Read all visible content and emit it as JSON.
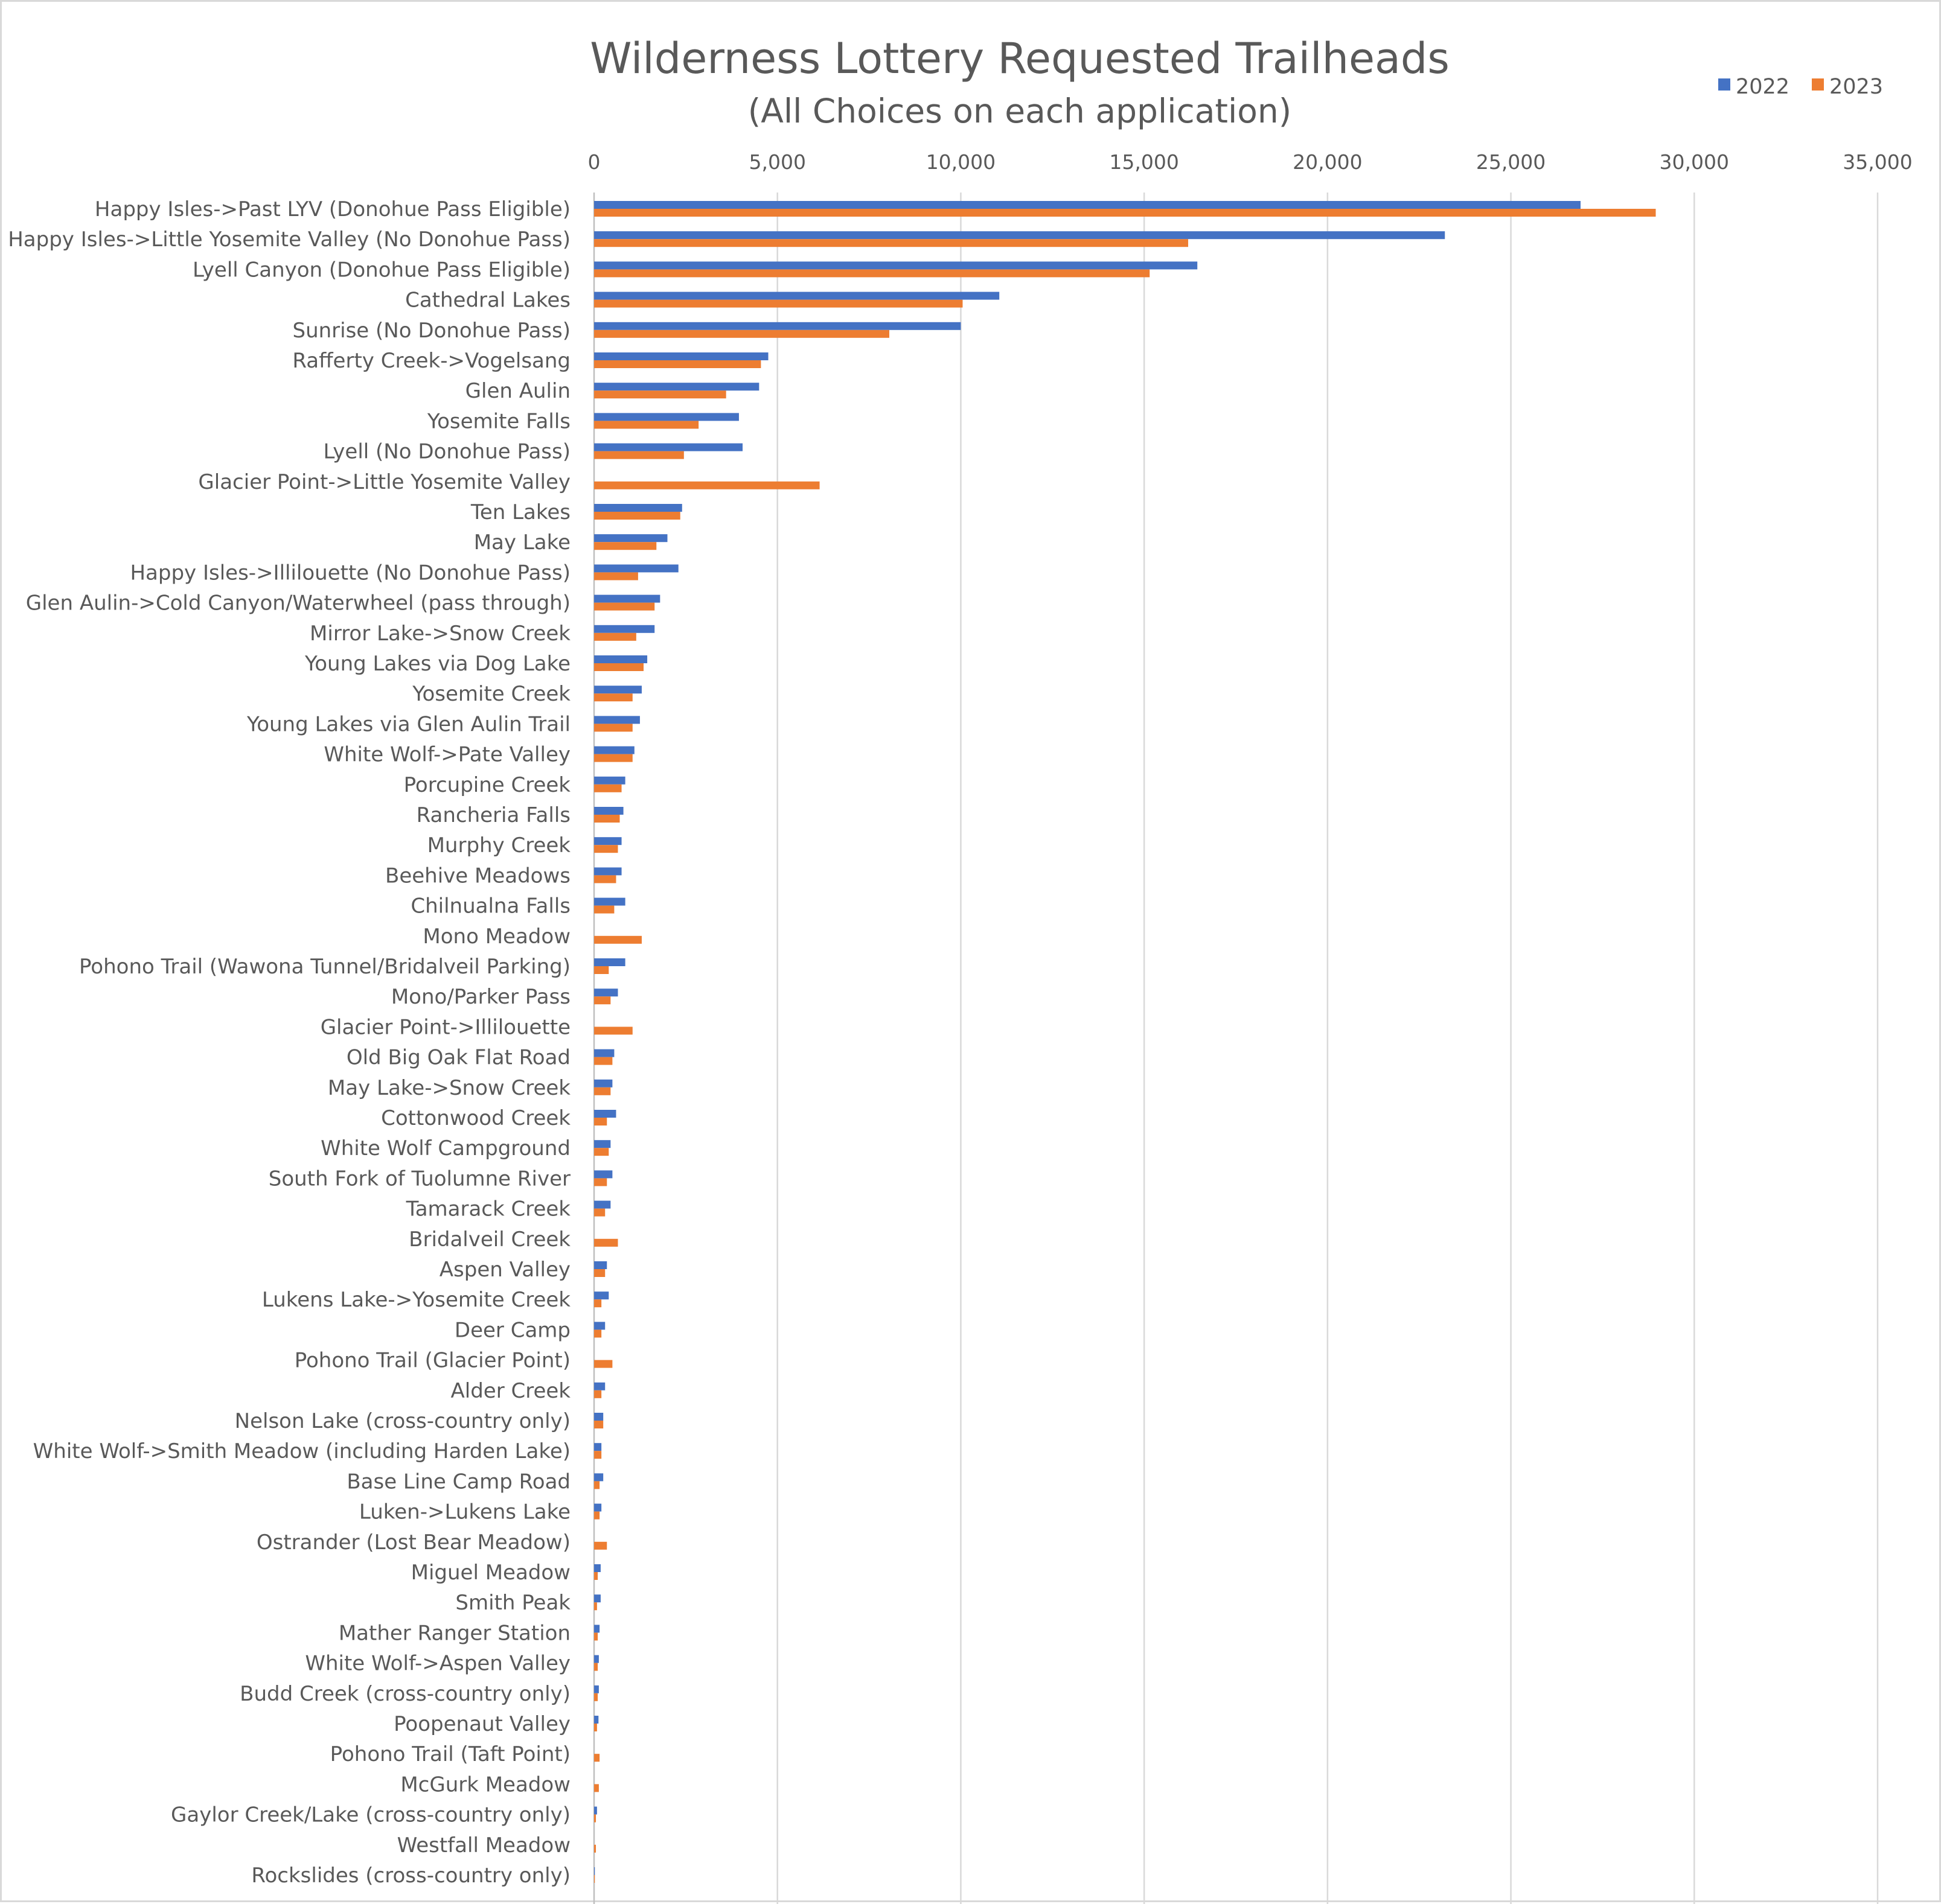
{
  "chart_data": {
    "type": "bar",
    "orientation": "horizontal",
    "title": "Wilderness Lottery Requested Trailheads",
    "subtitle": "(All Choices on each application)",
    "xlim": [
      0,
      35000
    ],
    "x_ticks": [
      0,
      5000,
      10000,
      15000,
      20000,
      25000,
      30000,
      35000
    ],
    "x_tick_labels": [
      "0",
      "5,000",
      "10,000",
      "15,000",
      "20,000",
      "25,000",
      "30,000",
      "35,000"
    ],
    "x_axis_position": "top",
    "grid": true,
    "legend_position": "top-right",
    "categories": [
      "Happy Isles->Past LYV (Donohue Pass Eligible)",
      "Happy Isles->Little Yosemite Valley (No Donohue Pass)",
      "Lyell Canyon (Donohue Pass Eligible)",
      "Cathedral Lakes",
      "Sunrise (No Donohue Pass)",
      "Rafferty Creek->Vogelsang",
      "Glen Aulin",
      "Yosemite Falls",
      "Lyell (No Donohue Pass)",
      "Glacier Point->Little Yosemite Valley",
      "Ten Lakes",
      "May Lake",
      "Happy Isles->Illilouette (No Donohue Pass)",
      "Glen Aulin->Cold Canyon/Waterwheel (pass through)",
      "Mirror Lake->Snow Creek",
      "Young Lakes via Dog Lake",
      "Yosemite Creek",
      "Young Lakes via Glen Aulin Trail",
      "White Wolf->Pate Valley",
      "Porcupine Creek",
      "Rancheria Falls",
      "Murphy Creek",
      "Beehive Meadows",
      "Chilnualna Falls",
      "Mono Meadow",
      "Pohono Trail (Wawona Tunnel/Bridalveil Parking)",
      "Mono/Parker Pass",
      "Glacier Point->Illilouette",
      "Old Big Oak Flat Road",
      "May Lake->Snow Creek",
      "Cottonwood Creek",
      "White Wolf Campground",
      "South Fork of Tuolumne River",
      "Tamarack Creek",
      "Bridalveil Creek",
      "Aspen Valley",
      "Lukens Lake->Yosemite Creek",
      "Deer Camp",
      "Pohono Trail (Glacier Point)",
      "Alder Creek",
      "Nelson Lake (cross-country only)",
      "White Wolf->Smith Meadow (including Harden Lake)",
      "Base Line Camp Road",
      "Luken->Lukens Lake",
      "Ostrander (Lost Bear Meadow)",
      "Miguel Meadow",
      "Smith Peak",
      "Mather Ranger Station",
      "White Wolf->Aspen Valley",
      "Budd Creek (cross-country only)",
      "Poopenaut Valley",
      "Pohono Trail (Taft Point)",
      "McGurk Meadow",
      "Gaylor Creek/Lake (cross-country only)",
      "Westfall Meadow",
      "Rockslides (cross-country only)"
    ],
    "series": [
      {
        "name": "2022",
        "color": "#4472c4",
        "values": [
          26900,
          23200,
          16450,
          11050,
          10000,
          4750,
          4500,
          3950,
          4050,
          0,
          2400,
          2000,
          2300,
          1800,
          1650,
          1450,
          1300,
          1250,
          1100,
          850,
          800,
          750,
          750,
          850,
          0,
          850,
          650,
          0,
          550,
          500,
          600,
          450,
          500,
          450,
          0,
          350,
          400,
          300,
          0,
          300,
          250,
          200,
          250,
          200,
          0,
          180,
          180,
          150,
          130,
          130,
          120,
          0,
          0,
          80,
          0,
          20
        ]
      },
      {
        "name": "2023",
        "color": "#ed7d31",
        "values": [
          28950,
          16200,
          15150,
          10050,
          8050,
          4550,
          3600,
          2850,
          2450,
          6150,
          2350,
          1700,
          1200,
          1650,
          1150,
          1350,
          1050,
          1050,
          1050,
          750,
          700,
          650,
          600,
          550,
          1300,
          400,
          450,
          1050,
          500,
          450,
          350,
          400,
          350,
          300,
          650,
          300,
          200,
          200,
          500,
          200,
          250,
          200,
          150,
          150,
          350,
          100,
          80,
          100,
          100,
          100,
          80,
          150,
          130,
          50,
          50,
          20
        ]
      }
    ]
  }
}
